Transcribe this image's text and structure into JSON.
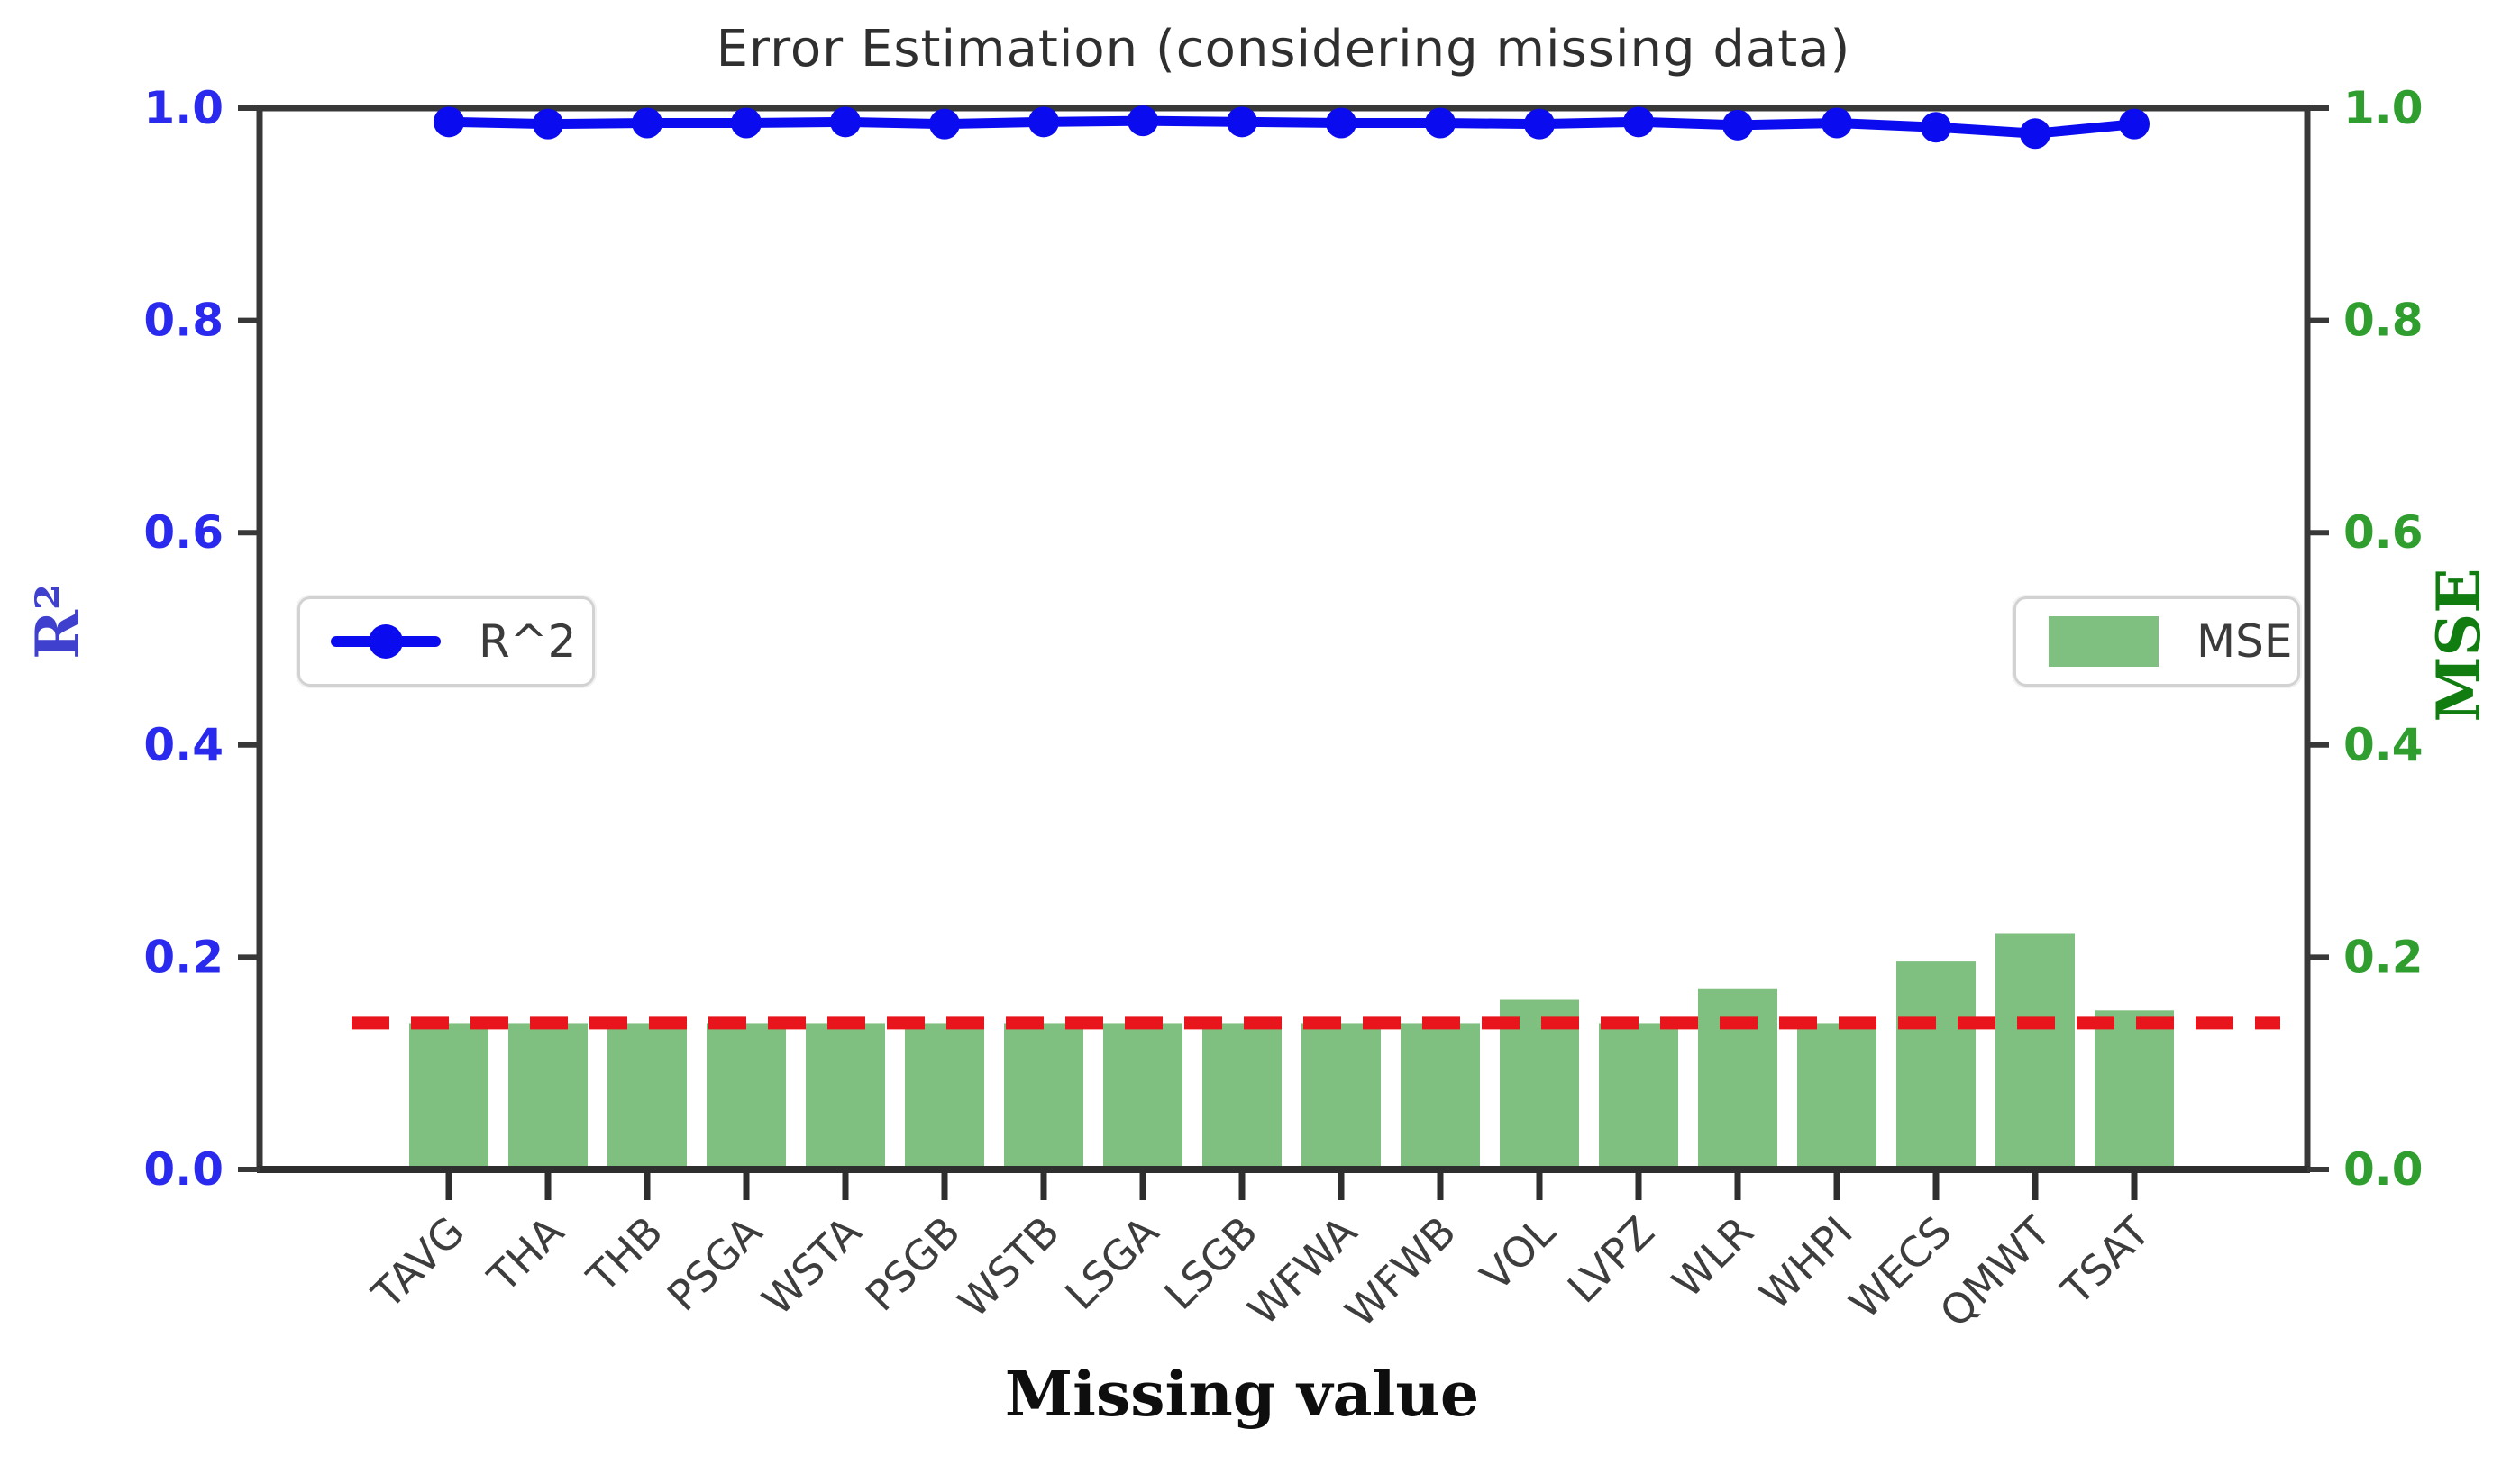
{
  "chart_data": {
    "type": "bar",
    "title": "Error Estimation (considering missing data)",
    "xlabel": "Missing value",
    "categories": [
      "TAVG",
      "THA",
      "THB",
      "PSGA",
      "WSTA",
      "PSGB",
      "WSTB",
      "LSGA",
      "LSGB",
      "WFWA",
      "WFWB",
      "VOL",
      "LVPZ",
      "WLR",
      "WHPI",
      "WECS",
      "QMWT",
      "TSAT"
    ],
    "series": [
      {
        "name": "R^2",
        "type": "line",
        "axis": "left",
        "color": "#0b0bf0",
        "values": [
          0.987,
          0.985,
          0.986,
          0.986,
          0.987,
          0.985,
          0.987,
          0.988,
          0.987,
          0.986,
          0.986,
          0.985,
          0.987,
          0.984,
          0.986,
          0.982,
          0.976,
          0.985
        ]
      },
      {
        "name": "MSE",
        "type": "bar",
        "axis": "right",
        "color": "#7fbf7f",
        "values": [
          0.138,
          0.138,
          0.138,
          0.138,
          0.138,
          0.138,
          0.138,
          0.138,
          0.138,
          0.138,
          0.138,
          0.16,
          0.138,
          0.17,
          0.138,
          0.196,
          0.222,
          0.15
        ]
      }
    ],
    "reference_line": {
      "value": 0.138,
      "color": "#e8161c",
      "style": "dashed"
    },
    "left_axis": {
      "label": "R²",
      "range": [
        0.0,
        1.0
      ],
      "ticks": [
        0.0,
        0.2,
        0.4,
        0.6,
        0.8,
        1.0
      ],
      "tick_color": "#2a2aee",
      "label_color": "#4040cf"
    },
    "right_axis": {
      "label": "MSE",
      "range": [
        0.0,
        1.0
      ],
      "ticks": [
        0.0,
        0.2,
        0.4,
        0.6,
        0.8,
        1.0
      ],
      "tick_color": "#2f9e2f",
      "label_color": "#117d11"
    },
    "legend": {
      "r2_label": "R^2",
      "mse_label": "MSE"
    },
    "grid": false,
    "legend_position": "left-middle and right-middle"
  },
  "style": {
    "spine_color": "#383838",
    "xtick_label_color": "#3d3d3d",
    "title_color": "#2f2f2f",
    "background": "#ffffff"
  }
}
